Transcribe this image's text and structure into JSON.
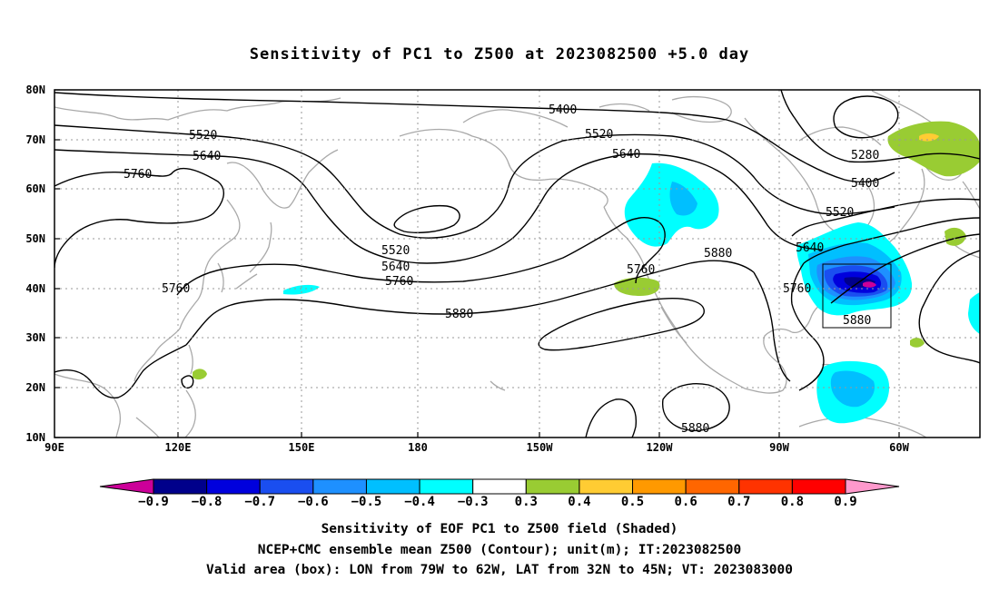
{
  "title": "Sensitivity of PC1 to Z500 at 2023082500 +5.0 day",
  "lat_labels": [
    "80N",
    "70N",
    "60N",
    "50N",
    "40N",
    "30N",
    "20N",
    "10N"
  ],
  "lon_labels": [
    "90E",
    "120E",
    "150E",
    "180",
    "150W",
    "120W",
    "90W",
    "60W"
  ],
  "contour_labels": [
    {
      "text": "5400"
    },
    {
      "text": "5520"
    },
    {
      "text": "5640"
    },
    {
      "text": "5760"
    },
    {
      "text": "5520"
    },
    {
      "text": "5640"
    },
    {
      "text": "5280"
    },
    {
      "text": "5400"
    },
    {
      "text": "5520"
    },
    {
      "text": "5640"
    },
    {
      "text": "5760"
    },
    {
      "text": "5880"
    },
    {
      "text": "5520"
    },
    {
      "text": "5640"
    },
    {
      "text": "5760"
    },
    {
      "text": "5760"
    },
    {
      "text": "5880"
    },
    {
      "text": "5760"
    },
    {
      "text": "5880"
    },
    {
      "text": "5880"
    }
  ],
  "colorbar": {
    "ticks": [
      "−0.9",
      "−0.8",
      "−0.7",
      "−0.6",
      "−0.5",
      "−0.4",
      "−0.3",
      "0.3",
      "0.4",
      "0.5",
      "0.6",
      "0.7",
      "0.8",
      "0.9"
    ],
    "colors": [
      "#cc0099",
      "#00008b",
      "#0000dd",
      "#1a4ef0",
      "#1e90ff",
      "#00bfff",
      "#00ffff",
      "#ffffff",
      "#99cc33",
      "#ffcc33",
      "#ff9900",
      "#ff6600",
      "#ff3300",
      "#ff0000",
      "#ff99cc"
    ]
  },
  "footer": {
    "line1": "Sensitivity of EOF PC1 to Z500 field (Shaded)",
    "line2": "NCEP+CMC ensemble mean Z500 (Contour); unit(m); IT:2023082500",
    "line3": "Valid area (box): LON from 79W to 62W, LAT from 32N to 45N; VT: 2023083000"
  }
}
